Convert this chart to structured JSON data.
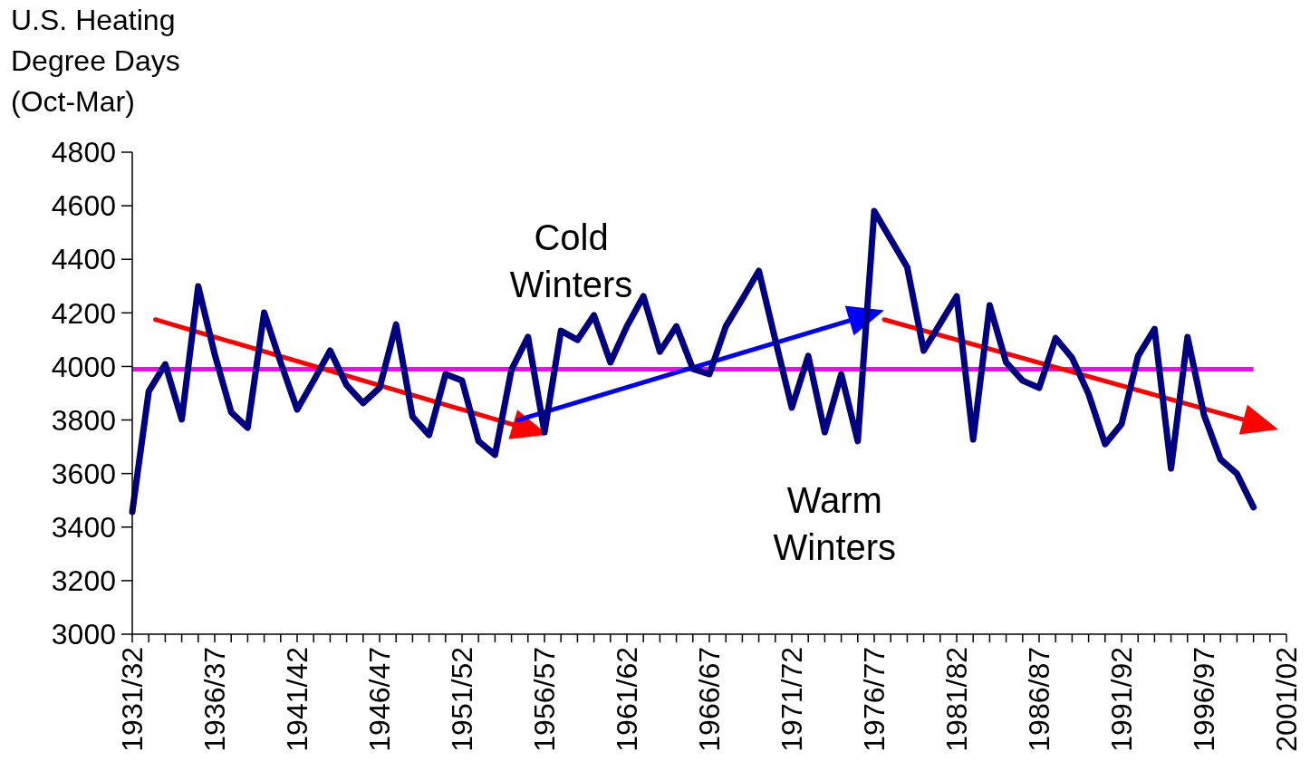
{
  "chart_data": {
    "type": "line",
    "ylabel": "U.S. Heating\nDegree Days\n(Oct-Mar)",
    "categories": [
      "1931/32",
      null,
      null,
      null,
      null,
      "1936/37",
      null,
      null,
      null,
      null,
      "1941/42",
      null,
      null,
      null,
      null,
      "1946/47",
      null,
      null,
      null,
      null,
      "1951/52",
      null,
      null,
      null,
      null,
      "1956/57",
      null,
      null,
      null,
      null,
      "1961/62",
      null,
      null,
      null,
      null,
      "1966/67",
      null,
      null,
      null,
      null,
      "1971/72",
      null,
      null,
      null,
      null,
      "1976/77",
      null,
      null,
      null,
      null,
      "1981/82",
      null,
      null,
      null,
      null,
      "1986/87",
      null,
      null,
      null,
      null,
      "1991/92",
      null,
      null,
      null,
      null,
      "1996/97",
      null,
      null,
      null,
      null,
      "2001/02"
    ],
    "series": [
      {
        "color": "#000080",
        "values": [
          3457,
          3907,
          4008,
          3802,
          4299,
          4045,
          3829,
          3771,
          4201,
          4015,
          3839,
          3947,
          4059,
          3930,
          3863,
          3920,
          4157,
          3812,
          3744,
          3971,
          3947,
          3721,
          3670,
          3988,
          4110,
          3754,
          4133,
          4099,
          4191,
          4015,
          4150,
          4262,
          4055,
          4150,
          3991,
          3971,
          4150,
          4252,
          4357,
          4099,
          3846,
          4039,
          3754,
          3971,
          3721,
          4580,
          4475,
          4370,
          4059,
          4160,
          4262,
          3727,
          4228,
          4015,
          3947,
          3920,
          4106,
          4032,
          3897,
          3710,
          3785,
          4039,
          4140,
          3619,
          4110,
          3819,
          3653,
          3599,
          3474,
          null,
          null
        ]
      }
    ],
    "ylim": [
      3000,
      4800
    ],
    "yticks": [
      3000,
      3200,
      3400,
      3600,
      3800,
      4000,
      4200,
      4400,
      4600,
      4800
    ],
    "ref_lines": [
      {
        "axis": "y",
        "value": 3990,
        "color": "#ff00ff"
      }
    ],
    "annotations": [
      "Cold\nWinters",
      "Warm\nWinters"
    ],
    "grid": false,
    "marker": "none",
    "line_style": "solid"
  }
}
